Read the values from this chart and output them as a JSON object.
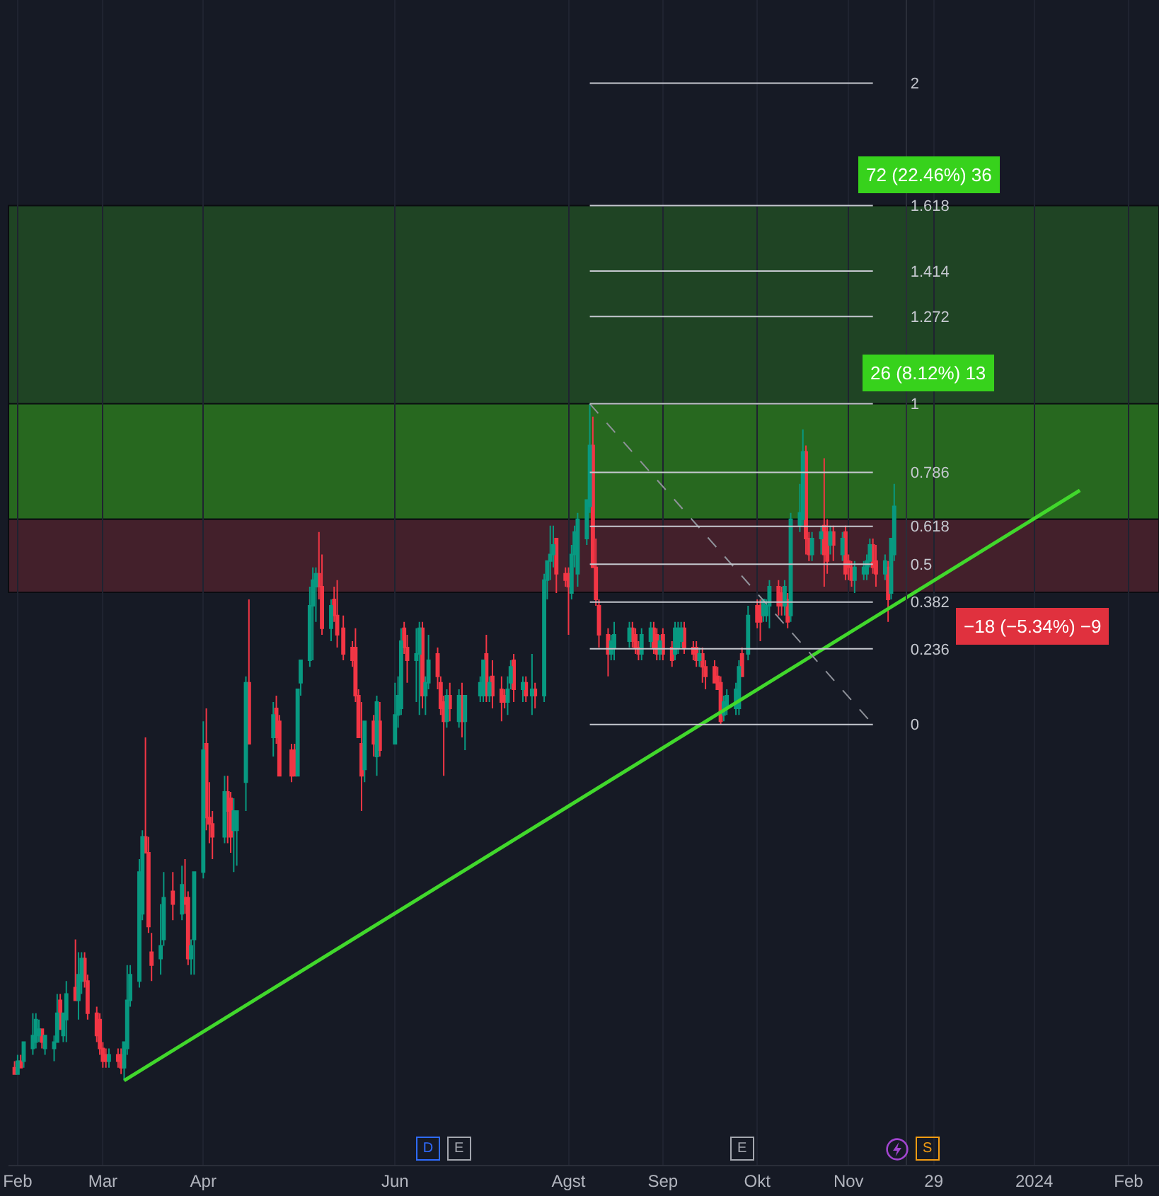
{
  "chart_data": {
    "type": "candlestick",
    "grid": "x",
    "xlim": [
      "2023-01-29",
      "2024-02-11"
    ],
    "xticks": [
      {
        "value": "2023-02-01",
        "label": "Feb"
      },
      {
        "value": "2023-03-01",
        "label": "Mar"
      },
      {
        "value": "2023-04-03",
        "label": "Apr"
      },
      {
        "value": "2023-06-05",
        "label": "Jun"
      },
      {
        "value": "2023-08-01",
        "label": "Agst"
      },
      {
        "value": "2023-09-01",
        "label": "Sep"
      },
      {
        "value": "2023-10-02",
        "label": "Okt"
      },
      {
        "value": "2023-11-01",
        "label": "Nov"
      },
      {
        "value": "2023-11-29",
        "label": "29"
      },
      {
        "value": "2024-01-01",
        "label": "2024"
      },
      {
        "value": "2024-02-01",
        "label": "Feb"
      }
    ],
    "ylim": [
      -1.373,
      2.259
    ],
    "yticks": [
      0,
      0.236,
      0.382,
      0.5,
      0.618,
      0.786,
      1,
      1.272,
      1.414,
      1.618,
      2
    ],
    "x": [
      "2023-01-31",
      "2023-02-01",
      "2023-02-02",
      "2023-02-03",
      "2023-02-06",
      "2023-02-07",
      "2023-02-08",
      "2023-02-09",
      "2023-02-10",
      "2023-02-13",
      "2023-02-14",
      "2023-02-15",
      "2023-02-16",
      "2023-02-17",
      "2023-02-20",
      "2023-02-21",
      "2023-02-22",
      "2023-02-23",
      "2023-02-24",
      "2023-02-27",
      "2023-02-28",
      "2023-03-01",
      "2023-03-02",
      "2023-03-03",
      "2023-03-06",
      "2023-03-07",
      "2023-03-08",
      "2023-03-09",
      "2023-03-10",
      "2023-03-13",
      "2023-03-14",
      "2023-03-15",
      "2023-03-16",
      "2023-03-17",
      "2023-03-20",
      "2023-03-21",
      "2023-03-24",
      "2023-03-27",
      "2023-03-28",
      "2023-03-29",
      "2023-03-30",
      "2023-03-31",
      "2023-04-03",
      "2023-04-04",
      "2023-04-05",
      "2023-04-06",
      "2023-04-10",
      "2023-04-11",
      "2023-04-12",
      "2023-04-13",
      "2023-04-14",
      "2023-04-17",
      "2023-04-18",
      "2023-04-26",
      "2023-04-27",
      "2023-04-28",
      "2023-05-02",
      "2023-05-03",
      "2023-05-04",
      "2023-05-05",
      "2023-05-08",
      "2023-05-09",
      "2023-05-10",
      "2023-05-11",
      "2023-05-12",
      "2023-05-15",
      "2023-05-16",
      "2023-05-17",
      "2023-05-19",
      "2023-05-22",
      "2023-05-23",
      "2023-05-24",
      "2023-05-25",
      "2023-05-26",
      "2023-05-29",
      "2023-05-30",
      "2023-05-31",
      "2023-06-05",
      "2023-06-06",
      "2023-06-07",
      "2023-06-08",
      "2023-06-09",
      "2023-06-12",
      "2023-06-13",
      "2023-06-14",
      "2023-06-15",
      "2023-06-16",
      "2023-06-19",
      "2023-06-20",
      "2023-06-21",
      "2023-06-22",
      "2023-06-23",
      "2023-06-26",
      "2023-06-27",
      "2023-06-28",
      "2023-07-03",
      "2023-07-04",
      "2023-07-05",
      "2023-07-06",
      "2023-07-07",
      "2023-07-10",
      "2023-07-11",
      "2023-07-12",
      "2023-07-13",
      "2023-07-14",
      "2023-07-17",
      "2023-07-18",
      "2023-07-20",
      "2023-07-21",
      "2023-07-24",
      "2023-07-25",
      "2023-07-26",
      "2023-07-27",
      "2023-07-28",
      "2023-07-31",
      "2023-08-01",
      "2023-08-02",
      "2023-08-03",
      "2023-08-04",
      "2023-08-07",
      "2023-08-08",
      "2023-08-09",
      "2023-08-10",
      "2023-08-11",
      "2023-08-14",
      "2023-08-15",
      "2023-08-16",
      "2023-08-21",
      "2023-08-22",
      "2023-08-23",
      "2023-08-24",
      "2023-08-25",
      "2023-08-28",
      "2023-08-29",
      "2023-08-30",
      "2023-08-31",
      "2023-09-01",
      "2023-09-04",
      "2023-09-05",
      "2023-09-06",
      "2023-09-07",
      "2023-09-08",
      "2023-09-11",
      "2023-09-12",
      "2023-09-13",
      "2023-09-14",
      "2023-09-15",
      "2023-09-18",
      "2023-09-19",
      "2023-09-20",
      "2023-09-21",
      "2023-09-22",
      "2023-09-25",
      "2023-09-26",
      "2023-09-27",
      "2023-09-29",
      "2023-10-02",
      "2023-10-03",
      "2023-10-04",
      "2023-10-05",
      "2023-10-06",
      "2023-10-09",
      "2023-10-10",
      "2023-10-11",
      "2023-10-12",
      "2023-10-13",
      "2023-10-16",
      "2023-10-17",
      "2023-10-18",
      "2023-10-19",
      "2023-10-20",
      "2023-10-23",
      "2023-10-24",
      "2023-10-25",
      "2023-10-26",
      "2023-10-27",
      "2023-10-30",
      "2023-10-31",
      "2023-11-01",
      "2023-11-02",
      "2023-11-03",
      "2023-11-06",
      "2023-11-07",
      "2023-11-08",
      "2023-11-09",
      "2023-11-10",
      "2023-11-13",
      "2023-11-14",
      "2023-11-15",
      "2023-11-16"
    ],
    "ohlc": [
      [
        -1.07,
        -1.05,
        -1.09,
        -1.09
      ],
      [
        -1.09,
        -1.03,
        -1.09,
        -1.05
      ],
      [
        -1.05,
        -1.03,
        -1.07,
        -1.07
      ],
      [
        -1.05,
        -0.99,
        -1.07,
        -0.99
      ],
      [
        -1.01,
        -0.9,
        -1.03,
        -0.97
      ],
      [
        -0.99,
        -0.9,
        -1.01,
        -0.92
      ],
      [
        -0.97,
        -0.92,
        -0.99,
        -0.95
      ],
      [
        -0.95,
        -0.95,
        -1.01,
        -0.99
      ],
      [
        -1.01,
        -0.97,
        -1.03,
        -0.97
      ],
      [
        -1.01,
        -0.97,
        -1.05,
        -0.99
      ],
      [
        -0.99,
        -0.84,
        -0.99,
        -0.9
      ],
      [
        -0.86,
        -0.84,
        -0.95,
        -0.95
      ],
      [
        -0.97,
        -0.9,
        -0.99,
        -0.9
      ],
      [
        -0.92,
        -0.8,
        -0.99,
        -0.84
      ],
      [
        -0.82,
        -0.67,
        -0.86,
        -0.86
      ],
      [
        -0.86,
        -0.71,
        -0.92,
        -0.78
      ],
      [
        -0.8,
        -0.71,
        -0.84,
        -0.73
      ],
      [
        -0.73,
        -0.71,
        -0.82,
        -0.8
      ],
      [
        -0.8,
        -0.78,
        -0.92,
        -0.9
      ],
      [
        -0.9,
        -0.88,
        -0.99,
        -0.97
      ],
      [
        -0.92,
        -0.9,
        -1.03,
        -1.01
      ],
      [
        -1.01,
        -0.99,
        -1.07,
        -1.05
      ],
      [
        -1.03,
        -1.01,
        -1.07,
        -1.05
      ],
      [
        -1.05,
        -1.01,
        -1.07,
        -1.03
      ],
      [
        -1.03,
        -1.01,
        -1.07,
        -1.05
      ],
      [
        -1.03,
        -1.01,
        -1.09,
        -1.07
      ],
      [
        -1.07,
        -0.99,
        -1.11,
        -0.99
      ],
      [
        -1.01,
        -0.75,
        -1.03,
        -0.86
      ],
      [
        -0.86,
        -0.75,
        -0.88,
        -0.78
      ],
      [
        -0.8,
        -0.42,
        -0.82,
        -0.46
      ],
      [
        -0.59,
        -0.33,
        -0.61,
        -0.35
      ],
      [
        -0.35,
        -0.04,
        -0.4,
        -0.4
      ],
      [
        -0.4,
        -0.35,
        -0.65,
        -0.63
      ],
      [
        -0.71,
        -0.65,
        -0.8,
        -0.75
      ],
      [
        -0.73,
        -0.56,
        -0.78,
        -0.69
      ],
      [
        -0.67,
        -0.46,
        -0.69,
        -0.54
      ],
      [
        -0.52,
        -0.46,
        -0.61,
        -0.56
      ],
      [
        -0.59,
        -0.44,
        -0.61,
        -0.5
      ],
      [
        -0.54,
        -0.42,
        -0.59,
        -0.56
      ],
      [
        -0.54,
        -0.52,
        -0.75,
        -0.73
      ],
      [
        -0.73,
        -0.67,
        -0.78,
        -0.69
      ],
      [
        -0.67,
        -0.46,
        -0.78,
        -0.46
      ],
      [
        -0.46,
        0.01,
        -0.48,
        -0.08
      ],
      [
        -0.06,
        0.05,
        -0.33,
        -0.29
      ],
      [
        -0.29,
        -0.18,
        -0.37,
        -0.31
      ],
      [
        -0.31,
        -0.27,
        -0.42,
        -0.35
      ],
      [
        -0.35,
        -0.16,
        -0.37,
        -0.21
      ],
      [
        -0.21,
        -0.16,
        -0.37,
        -0.27
      ],
      [
        -0.23,
        -0.21,
        -0.4,
        -0.35
      ],
      [
        -0.33,
        -0.23,
        -0.46,
        -0.27
      ],
      [
        -0.33,
        -0.27,
        -0.44,
        -0.27
      ],
      [
        -0.18,
        0.15,
        -0.27,
        0.13
      ],
      [
        0.13,
        0.39,
        -0.06,
        -0.06
      ],
      [
        -0.04,
        0.07,
        -0.1,
        0.03
      ],
      [
        0.05,
        0.09,
        -0.06,
        -0.04
      ],
      [
        0.01,
        0.03,
        -0.16,
        -0.16
      ],
      [
        -0.08,
        -0.06,
        -0.18,
        -0.16
      ],
      [
        -0.08,
        -0.06,
        -0.16,
        -0.16
      ],
      [
        -0.16,
        0.11,
        -0.16,
        0.11
      ],
      [
        0.13,
        0.2,
        0.09,
        0.2
      ],
      [
        0.2,
        0.43,
        0.18,
        0.37
      ],
      [
        0.37,
        0.49,
        0.2,
        0.45
      ],
      [
        0.43,
        0.49,
        0.32,
        0.47
      ],
      [
        0.47,
        0.6,
        0.39,
        0.43
      ],
      [
        0.43,
        0.53,
        0.28,
        0.3
      ],
      [
        0.3,
        0.39,
        0.26,
        0.37
      ],
      [
        0.39,
        0.43,
        0.32,
        0.34
      ],
      [
        0.34,
        0.45,
        0.24,
        0.28
      ],
      [
        0.3,
        0.34,
        0.2,
        0.22
      ],
      [
        0.24,
        0.26,
        0.18,
        0.2
      ],
      [
        0.24,
        0.3,
        0.07,
        0.09
      ],
      [
        0.09,
        0.11,
        -0.04,
        -0.04
      ],
      [
        -0.06,
        0.07,
        -0.27,
        -0.16
      ],
      [
        -0.14,
        0.01,
        -0.18,
        0.01
      ],
      [
        0.01,
        0.03,
        -0.1,
        -0.06
      ],
      [
        -0.1,
        0.09,
        -0.16,
        0.07
      ],
      [
        0.01,
        0.07,
        -0.1,
        -0.08
      ],
      [
        -0.06,
        0.13,
        -0.06,
        0.03
      ],
      [
        0.03,
        0.15,
        -0.01,
        0.09
      ],
      [
        0.05,
        0.3,
        0.03,
        0.26
      ],
      [
        0.3,
        0.32,
        0.22,
        0.24
      ],
      [
        0.24,
        0.28,
        0.13,
        0.2
      ],
      [
        0.2,
        0.3,
        0.07,
        0.22
      ],
      [
        0.22,
        0.32,
        0.03,
        0.3
      ],
      [
        0.3,
        0.32,
        0.05,
        0.09
      ],
      [
        0.09,
        0.15,
        0.03,
        0.13
      ],
      [
        0.13,
        0.28,
        0.11,
        0.2
      ],
      [
        0.22,
        0.24,
        0.11,
        0.15
      ],
      [
        0.13,
        0.15,
        0.03,
        0.05
      ],
      [
        0.07,
        0.09,
        -0.16,
        0.01
      ],
      [
        0.01,
        0.11,
        -0.01,
        0.09
      ],
      [
        0.09,
        0.13,
        0.01,
        0.05
      ],
      [
        0.01,
        0.11,
        -0.01,
        0.09
      ],
      [
        0.09,
        0.13,
        -0.04,
        0.01
      ],
      [
        0.01,
        0.09,
        -0.08,
        0.09
      ],
      [
        0.09,
        0.15,
        0.07,
        0.13
      ],
      [
        0.09,
        0.2,
        0.07,
        0.2
      ],
      [
        0.22,
        0.28,
        0.07,
        0.09
      ],
      [
        0.09,
        0.15,
        0.07,
        0.13
      ],
      [
        0.15,
        0.2,
        0.05,
        0.09
      ],
      [
        0.11,
        0.15,
        0.01,
        0.07
      ],
      [
        0.09,
        0.11,
        0.05,
        0.07
      ],
      [
        0.07,
        0.15,
        0.03,
        0.11
      ],
      [
        0.13,
        0.2,
        0.11,
        0.18
      ],
      [
        0.2,
        0.22,
        0.07,
        0.11
      ],
      [
        0.11,
        0.15,
        0.07,
        0.13
      ],
      [
        0.13,
        0.15,
        0.07,
        0.09
      ],
      [
        0.09,
        0.22,
        0.03,
        0.11
      ],
      [
        0.11,
        0.13,
        0.05,
        0.09
      ],
      [
        0.09,
        0.47,
        0.07,
        0.45
      ],
      [
        0.45,
        0.51,
        0.39,
        0.51
      ],
      [
        0.51,
        0.62,
        0.45,
        0.53
      ],
      [
        0.53,
        0.62,
        0.49,
        0.56
      ],
      [
        0.58,
        0.58,
        0.41,
        0.47
      ],
      [
        0.47,
        0.49,
        0.43,
        0.45
      ],
      [
        0.47,
        0.49,
        0.28,
        0.43
      ],
      [
        0.41,
        0.56,
        0.39,
        0.53
      ],
      [
        0.53,
        0.62,
        0.49,
        0.6
      ],
      [
        0.47,
        0.66,
        0.43,
        0.64
      ],
      [
        0.58,
        0.7,
        0.56,
        0.7
      ],
      [
        0.68,
        1,
        0.66,
        0.87
      ],
      [
        0.87,
        0.96,
        0.49,
        0.49
      ],
      [
        0.49,
        0.58,
        0.37,
        0.39
      ],
      [
        0.37,
        0.39,
        0.24,
        0.28
      ],
      [
        0.28,
        0.3,
        0.15,
        0.22
      ],
      [
        0.22,
        0.28,
        0.2,
        0.26
      ],
      [
        0.24,
        0.32,
        0.2,
        0.28
      ],
      [
        0.26,
        0.32,
        0.24,
        0.3
      ],
      [
        0.3,
        0.32,
        0.24,
        0.26
      ],
      [
        0.28,
        0.3,
        0.22,
        0.24
      ],
      [
        0.24,
        0.26,
        0.2,
        0.22
      ],
      [
        0.22,
        0.3,
        0.2,
        0.28
      ],
      [
        0.26,
        0.32,
        0.24,
        0.3
      ],
      [
        0.3,
        0.32,
        0.22,
        0.24
      ],
      [
        0.28,
        0.3,
        0.2,
        0.22
      ],
      [
        0.22,
        0.28,
        0.2,
        0.26
      ],
      [
        0.28,
        0.3,
        0.2,
        0.22
      ],
      [
        0.24,
        0.26,
        0.18,
        0.2
      ],
      [
        0.22,
        0.32,
        0.2,
        0.3
      ],
      [
        0.24,
        0.32,
        0.22,
        0.3
      ],
      [
        0.26,
        0.32,
        0.24,
        0.3
      ],
      [
        0.3,
        0.32,
        0.22,
        0.24
      ],
      [
        0.24,
        0.26,
        0.2,
        0.22
      ],
      [
        0.24,
        0.26,
        0.18,
        0.2
      ],
      [
        0.2,
        0.24,
        0.18,
        0.22
      ],
      [
        0.22,
        0.24,
        0.13,
        0.18
      ],
      [
        0.18,
        0.2,
        0.11,
        0.15
      ],
      [
        0.18,
        0.2,
        0.13,
        0.13
      ],
      [
        0.15,
        0.18,
        0.11,
        0.11
      ],
      [
        0.13,
        0.15,
        0,
        0.01
      ],
      [
        0.03,
        0.09,
        0.01,
        0.07
      ],
      [
        0.05,
        0.11,
        0.03,
        0.09
      ],
      [
        0.05,
        0.13,
        0.03,
        0.11
      ],
      [
        0.05,
        0.2,
        0.03,
        0.18
      ],
      [
        0.22,
        0.24,
        0.15,
        0.15
      ],
      [
        0.22,
        0.37,
        0.2,
        0.34
      ],
      [
        0.37,
        0.39,
        0.3,
        0.32
      ],
      [
        0.37,
        0.39,
        0.26,
        0.32
      ],
      [
        0.34,
        0.39,
        0.32,
        0.39
      ],
      [
        0.34,
        0.39,
        0.32,
        0.37
      ],
      [
        0.37,
        0.45,
        0.3,
        0.43
      ],
      [
        0.43,
        0.45,
        0.34,
        0.37
      ],
      [
        0.41,
        0.43,
        0.34,
        0.37
      ],
      [
        0.37,
        0.45,
        0.34,
        0.43
      ],
      [
        0.39,
        0.41,
        0.3,
        0.32
      ],
      [
        0.34,
        0.66,
        0.32,
        0.64
      ],
      [
        0.62,
        0.75,
        0.6,
        0.66
      ],
      [
        0.64,
        0.92,
        0.62,
        0.85
      ],
      [
        0.85,
        0.87,
        0.53,
        0.58
      ],
      [
        0.58,
        0.6,
        0.51,
        0.53
      ],
      [
        0.53,
        0.6,
        0.51,
        0.58
      ],
      [
        0.58,
        0.62,
        0.53,
        0.6
      ],
      [
        0.62,
        0.83,
        0.43,
        0.53
      ],
      [
        0.6,
        0.64,
        0.47,
        0.51
      ],
      [
        0.56,
        0.62,
        0.53,
        0.6
      ],
      [
        0.6,
        0.62,
        0.51,
        0.56
      ],
      [
        0.53,
        0.6,
        0.51,
        0.58
      ],
      [
        0.6,
        0.62,
        0.45,
        0.47
      ],
      [
        0.51,
        0.53,
        0.45,
        0.49
      ],
      [
        0.49,
        0.51,
        0.43,
        0.45
      ],
      [
        0.45,
        0.51,
        0.41,
        0.49
      ],
      [
        0.47,
        0.51,
        0.45,
        0.49
      ],
      [
        0.47,
        0.53,
        0.45,
        0.51
      ],
      [
        0.51,
        0.58,
        0.49,
        0.56
      ],
      [
        0.56,
        0.58,
        0.47,
        0.49
      ],
      [
        0.51,
        0.56,
        0.43,
        0.47
      ],
      [
        0.47,
        0.53,
        0.45,
        0.51
      ],
      [
        0.49,
        0.51,
        0.32,
        0.39
      ],
      [
        0.41,
        0.58,
        0.39,
        0.58
      ],
      [
        0.53,
        0.75,
        0.51,
        0.68
      ]
    ],
    "colors": [
      "#f23645",
      "#089981",
      "#f23645",
      "#089981",
      "#089981",
      "#089981",
      "#089981",
      "#f23645",
      "#089981",
      "#089981",
      "#089981",
      "#f23645",
      "#089981",
      "#089981",
      "#f23645",
      "#089981",
      "#089981",
      "#f23645",
      "#f23645",
      "#f23645",
      "#f23645",
      "#f23645",
      "#f23645",
      "#089981",
      "#f23645",
      "#f23645",
      "#089981",
      "#089981",
      "#089981",
      "#089981",
      "#089981",
      "#f23645",
      "#f23645",
      "#f23645",
      "#089981",
      "#089981",
      "#f23645",
      "#089981",
      "#f23645",
      "#f23645",
      "#089981",
      "#089981",
      "#089981",
      "#f23645",
      "#f23645",
      "#f23645",
      "#089981",
      "#f23645",
      "#f23645",
      "#089981",
      "#089981",
      "#089981",
      "#f23645",
      "#089981",
      "#f23645",
      "#f23645",
      "#f23645",
      "#f23645",
      "#089981",
      "#089981",
      "#089981",
      "#089981",
      "#089981",
      "#f23645",
      "#f23645",
      "#089981",
      "#f23645",
      "#f23645",
      "#f23645",
      "#f23645",
      "#f23645",
      "#f23645",
      "#f23645",
      "#089981",
      "#f23645",
      "#089981",
      "#f23645",
      "#089981",
      "#089981",
      "#089981",
      "#f23645",
      "#f23645",
      "#089981",
      "#089981",
      "#f23645",
      "#089981",
      "#089981",
      "#f23645",
      "#f23645",
      "#f23645",
      "#089981",
      "#f23645",
      "#089981",
      "#f23645",
      "#089981",
      "#089981",
      "#089981",
      "#f23645",
      "#089981",
      "#f23645",
      "#f23645",
      "#f23645",
      "#089981",
      "#089981",
      "#f23645",
      "#089981",
      "#f23645",
      "#089981",
      "#f23645",
      "#089981",
      "#089981",
      "#089981",
      "#089981",
      "#f23645",
      "#f23645",
      "#f23645",
      "#089981",
      "#089981",
      "#089981",
      "#089981",
      "#089981",
      "#f23645",
      "#f23645",
      "#f23645",
      "#f23645",
      "#089981",
      "#089981",
      "#089981",
      "#f23645",
      "#f23645",
      "#f23645",
      "#089981",
      "#089981",
      "#f23645",
      "#f23645",
      "#089981",
      "#f23645",
      "#f23645",
      "#089981",
      "#089981",
      "#089981",
      "#f23645",
      "#f23645",
      "#f23645",
      "#089981",
      "#f23645",
      "#f23645",
      "#f23645",
      "#f23645",
      "#f23645",
      "#089981",
      "#089981",
      "#089981",
      "#089981",
      "#f23645",
      "#089981",
      "#f23645",
      "#f23645",
      "#089981",
      "#089981",
      "#089981",
      "#f23645",
      "#f23645",
      "#089981",
      "#f23645",
      "#089981",
      "#089981",
      "#089981",
      "#f23645",
      "#f23645",
      "#089981",
      "#089981",
      "#f23645",
      "#f23645",
      "#089981",
      "#f23645",
      "#089981",
      "#f23645",
      "#f23645",
      "#f23645",
      "#089981",
      "#089981",
      "#089981",
      "#089981",
      "#f23645",
      "#f23645",
      "#089981",
      "#f23645",
      "#089981",
      "#089981"
    ],
    "series": [
      {
        "type": "line",
        "color": "#41d82c",
        "x": [
          "2023-03-08",
          "2024-01-16"
        ],
        "values": [
          -1.11,
          0.73
        ]
      },
      {
        "type": "line",
        "color": "#8f929a",
        "line_style": "dashed",
        "x": [
          "2023-08-08",
          "2023-11-09"
        ],
        "values": [
          1,
          0
        ]
      },
      {
        "type": "line",
        "color": "#c5c8cf",
        "x": [
          "2023-08-08",
          "2023-11-09"
        ],
        "values": [
          0,
          0
        ]
      },
      {
        "type": "line",
        "color": "#c5c8cf",
        "x": [
          "2023-08-08",
          "2023-11-09"
        ],
        "values": [
          0.236,
          0.236
        ]
      },
      {
        "type": "line",
        "color": "#c5c8cf",
        "x": [
          "2023-08-08",
          "2023-11-09"
        ],
        "values": [
          0.382,
          0.382
        ]
      },
      {
        "type": "line",
        "color": "#c5c8cf",
        "x": [
          "2023-08-08",
          "2023-11-09"
        ],
        "values": [
          0.5,
          0.5
        ]
      },
      {
        "type": "line",
        "color": "#c5c8cf",
        "x": [
          "2023-08-08",
          "2023-11-09"
        ],
        "values": [
          0.618,
          0.618
        ]
      },
      {
        "type": "line",
        "color": "#c5c8cf",
        "x": [
          "2023-08-08",
          "2023-11-09"
        ],
        "values": [
          0.786,
          0.786
        ]
      },
      {
        "type": "line",
        "color": "#c5c8cf",
        "x": [
          "2023-08-08",
          "2023-11-09"
        ],
        "values": [
          1,
          1
        ]
      },
      {
        "type": "line",
        "color": "#c5c8cf",
        "x": [
          "2023-08-08",
          "2023-11-09"
        ],
        "values": [
          1.272,
          1.272
        ]
      },
      {
        "type": "line",
        "color": "#c5c8cf",
        "x": [
          "2023-08-08",
          "2023-11-09"
        ],
        "values": [
          1.414,
          1.414
        ]
      },
      {
        "type": "line",
        "color": "#c5c8cf",
        "x": [
          "2023-08-08",
          "2023-11-09"
        ],
        "values": [
          1.618,
          1.618
        ]
      },
      {
        "type": "line",
        "color": "#c5c8cf",
        "x": [
          "2023-08-08",
          "2023-11-09"
        ],
        "values": [
          2,
          2
        ]
      }
    ],
    "bands": [
      {
        "axis": "y",
        "from": 0.64,
        "to": 1.618,
        "label": "72 (22.46%) 36",
        "color": "#1f4424"
      },
      {
        "axis": "y",
        "from": 0.64,
        "to": 1,
        "label": "26 (8.12%) 13",
        "color": "#27681f"
      },
      {
        "axis": "y",
        "from": 0.64,
        "to": 0.412,
        "label": "−18 (−5.34%) −9",
        "color": "#43202b"
      }
    ],
    "annotations": [
      "D",
      "E",
      "E",
      "S"
    ]
  }
}
